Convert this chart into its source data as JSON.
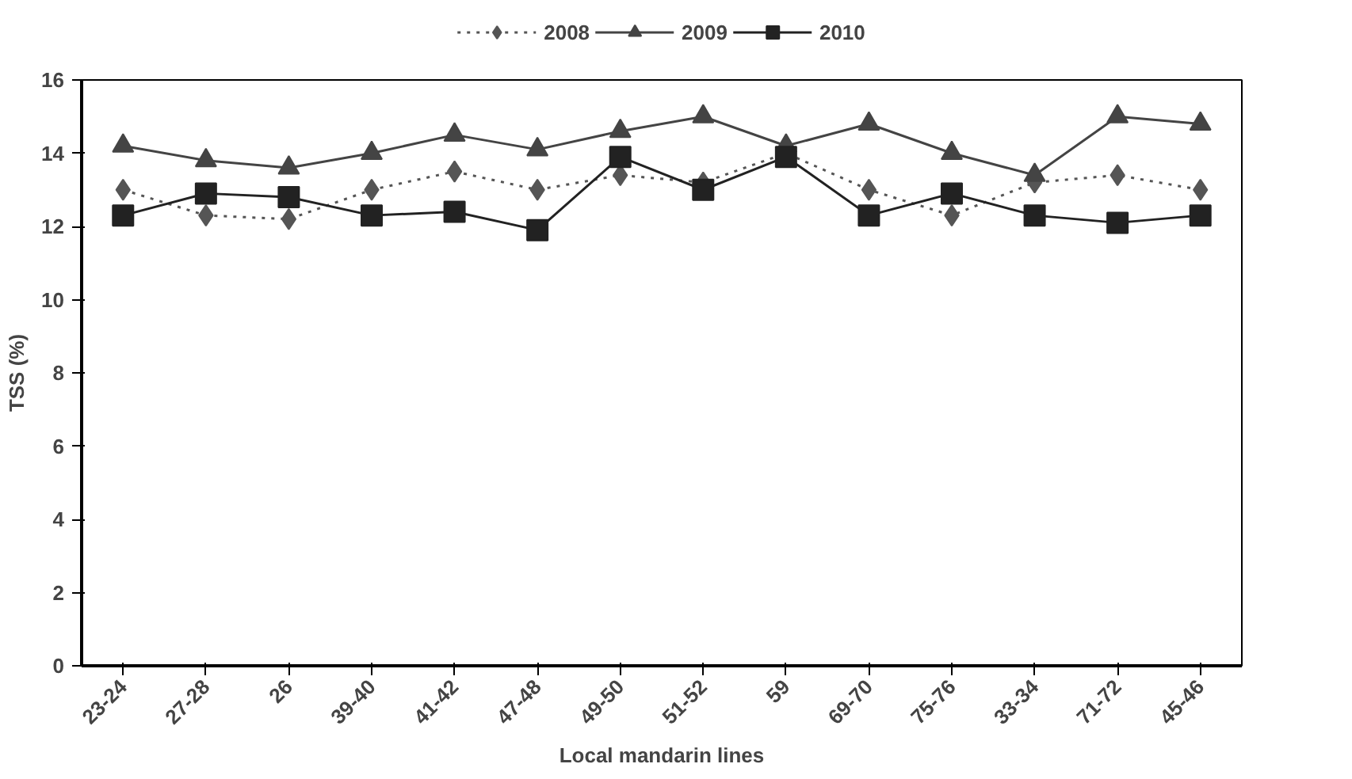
{
  "chart_data": {
    "type": "line",
    "xlabel": "Local mandarin lines",
    "ylabel": "TSS (%)",
    "categories": [
      "23-24",
      "27-28",
      "26",
      "39-40",
      "41-42",
      "47-48",
      "49-50",
      "51-52",
      "59",
      "69-70",
      "75-76",
      "33-34",
      "71-72",
      "45-46"
    ],
    "ylim": [
      0,
      16
    ],
    "yticks": [
      0,
      2,
      4,
      6,
      8,
      10,
      12,
      14,
      16
    ],
    "grid": false,
    "legend": "top",
    "series": [
      {
        "name": "2008",
        "color": "#555555",
        "marker": "diamond",
        "line_style": "dotted",
        "values": [
          13.0,
          12.3,
          12.2,
          13.0,
          13.5,
          13.0,
          13.4,
          13.2,
          14.0,
          13.0,
          12.3,
          13.2,
          13.4,
          13.0
        ]
      },
      {
        "name": "2009",
        "color": "#444444",
        "marker": "triangle",
        "line_style": "solid",
        "values": [
          14.2,
          13.8,
          13.6,
          14.0,
          14.5,
          14.1,
          14.6,
          15.0,
          14.2,
          14.8,
          14.0,
          13.4,
          15.0,
          14.8
        ]
      },
      {
        "name": "2010",
        "color": "#222222",
        "marker": "square",
        "line_style": "solid",
        "values": [
          12.3,
          12.9,
          12.8,
          12.3,
          12.4,
          11.9,
          13.9,
          13.0,
          13.9,
          12.3,
          12.9,
          12.3,
          12.1,
          12.3
        ]
      }
    ]
  }
}
